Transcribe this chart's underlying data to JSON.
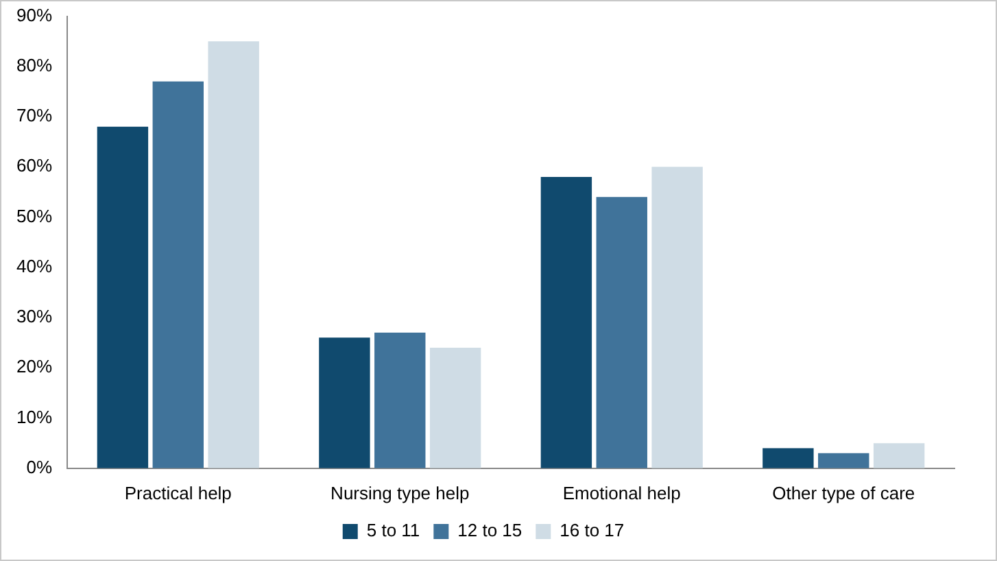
{
  "chart_data": {
    "type": "bar",
    "categories": [
      "Practical help",
      "Nursing type help",
      "Emotional help",
      "Other type of care"
    ],
    "series": [
      {
        "name": "5 to 11",
        "color": "#104a6e",
        "values": [
          68,
          26,
          58,
          4
        ]
      },
      {
        "name": "12 to 15",
        "color": "#40739a",
        "values": [
          77,
          27,
          54,
          3
        ]
      },
      {
        "name": "16 to 17",
        "color": "#cfdce5",
        "values": [
          85,
          24,
          60,
          5
        ]
      }
    ],
    "ylim": [
      0,
      90
    ],
    "yticks": [
      {
        "value": 0,
        "label": "0%"
      },
      {
        "value": 10,
        "label": "10%"
      },
      {
        "value": 20,
        "label": "20%"
      },
      {
        "value": 30,
        "label": "30%"
      },
      {
        "value": 40,
        "label": "40%"
      },
      {
        "value": 50,
        "label": "50%"
      },
      {
        "value": 60,
        "label": "60%"
      },
      {
        "value": 70,
        "label": "70%"
      },
      {
        "value": 80,
        "label": "80%"
      },
      {
        "value": 90,
        "label": "90%"
      }
    ],
    "grid": false,
    "legend": "bottom"
  }
}
